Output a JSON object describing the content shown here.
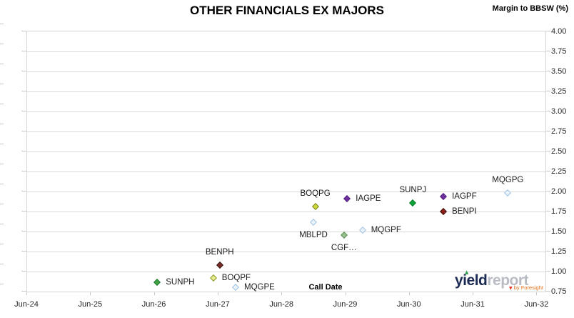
{
  "branding": {
    "logo_yield": "yield",
    "logo_report": "report",
    "logo_byline": "by Foresight",
    "logo_navy": "#1b2a52",
    "logo_gray": "#b9bcc4",
    "logo_orange": "#e8701a",
    "logo_green": "#2e9e4f",
    "logo_red": "#e0301e",
    "triangle_up": "▲",
    "triangle_down": "▼"
  },
  "chart_data": {
    "type": "scatter",
    "title": "OTHER FINANCIALS EX MAJORS",
    "xlabel": "Call Date",
    "ylabel": "Margin to BBSW (%)",
    "ylim": [
      0.75,
      4.0
    ],
    "y_tick_values": [
      4.0,
      3.75,
      3.5,
      3.25,
      3.0,
      2.75,
      2.5,
      2.25,
      2.0,
      1.75,
      1.5,
      1.25,
      1.0,
      0.75
    ],
    "y_tick_labels": [
      "4.00",
      "3.75",
      "3.50",
      "3.25",
      "3.00",
      "2.75",
      "2.50",
      "2.25",
      "2.00",
      "1.75",
      "1.50",
      "1.25",
      "1.00",
      "0.75"
    ],
    "x_tick_labels": [
      "Jun-24",
      "Jun-25",
      "Jun-26",
      "Jun-27",
      "Jun-28",
      "Jun-29",
      "Jun-30",
      "Jun-31",
      "Jun-32"
    ],
    "x_span_years": 8.13,
    "grid": "horizontal",
    "legend": "none",
    "colors": {
      "gridline": "#d9d9d9",
      "axis_text": "#262626",
      "plot_border": "#d6d6d6"
    },
    "points": [
      {
        "name": "SUNPH",
        "call_date": "Jun-26",
        "x_years": 2.04,
        "margin": 0.87,
        "fill": "#44a248",
        "border": "#1f7a2d",
        "label_pos": "right"
      },
      {
        "name": "BOQPF",
        "call_date": "May-27",
        "x_years": 2.92,
        "margin": 0.92,
        "fill": "#e7ee8d",
        "border": "#8f9430",
        "label_pos": "right"
      },
      {
        "name": "BENPH",
        "call_date": "Jun-27",
        "x_years": 3.02,
        "margin": 1.08,
        "fill": "#7a2d28",
        "border": "#381210",
        "label_pos": "above"
      },
      {
        "name": "MQGPE",
        "call_date": "Sep-27",
        "x_years": 3.27,
        "margin": 0.8,
        "fill": "#ecf2fa",
        "border": "#9dc3e6",
        "label_pos": "right"
      },
      {
        "name": "MBLPD",
        "call_date": "Dec-28",
        "x_years": 4.49,
        "margin": 1.62,
        "fill": "#ecf2fa",
        "border": "#9dc3e6",
        "label_pos": "below"
      },
      {
        "name": "BOQPG",
        "call_date": "Dec-28",
        "x_years": 4.52,
        "margin": 1.81,
        "fill": "#ccd83a",
        "border": "#7f871e",
        "label_pos": "above"
      },
      {
        "name": "CGF…",
        "call_date": "Jun-29",
        "x_years": 4.97,
        "margin": 1.46,
        "fill": "#96c08b",
        "border": "#61905b",
        "label_pos": "below"
      },
      {
        "name": "IAGPE",
        "call_date": "Jun-29",
        "x_years": 5.02,
        "margin": 1.91,
        "fill": "#7030a0",
        "border": "#50207a",
        "label_pos": "right"
      },
      {
        "name": "MQGPF",
        "call_date": "Sep-29",
        "x_years": 5.26,
        "margin": 1.52,
        "fill": "#ecf2fa",
        "border": "#9dc3e6",
        "label_pos": "right"
      },
      {
        "name": "SUNPJ",
        "call_date": "Jun-30",
        "x_years": 6.05,
        "margin": 1.86,
        "fill": "#0fa53a",
        "border": "#077a28",
        "label_pos": "above"
      },
      {
        "name": "IAGPF",
        "call_date": "Dec-30",
        "x_years": 6.53,
        "margin": 1.94,
        "fill": "#7030a0",
        "border": "#50207a",
        "label_pos": "right"
      },
      {
        "name": "BENPI",
        "call_date": "Dec-30",
        "x_years": 6.53,
        "margin": 1.75,
        "fill": "#8d2016",
        "border": "#3c0d08",
        "label_pos": "right"
      },
      {
        "name": "MQGPG",
        "call_date": "Dec-31",
        "x_years": 7.54,
        "margin": 1.98,
        "fill": "#ecf2fa",
        "border": "#9dc3e6",
        "label_pos": "above"
      }
    ]
  }
}
